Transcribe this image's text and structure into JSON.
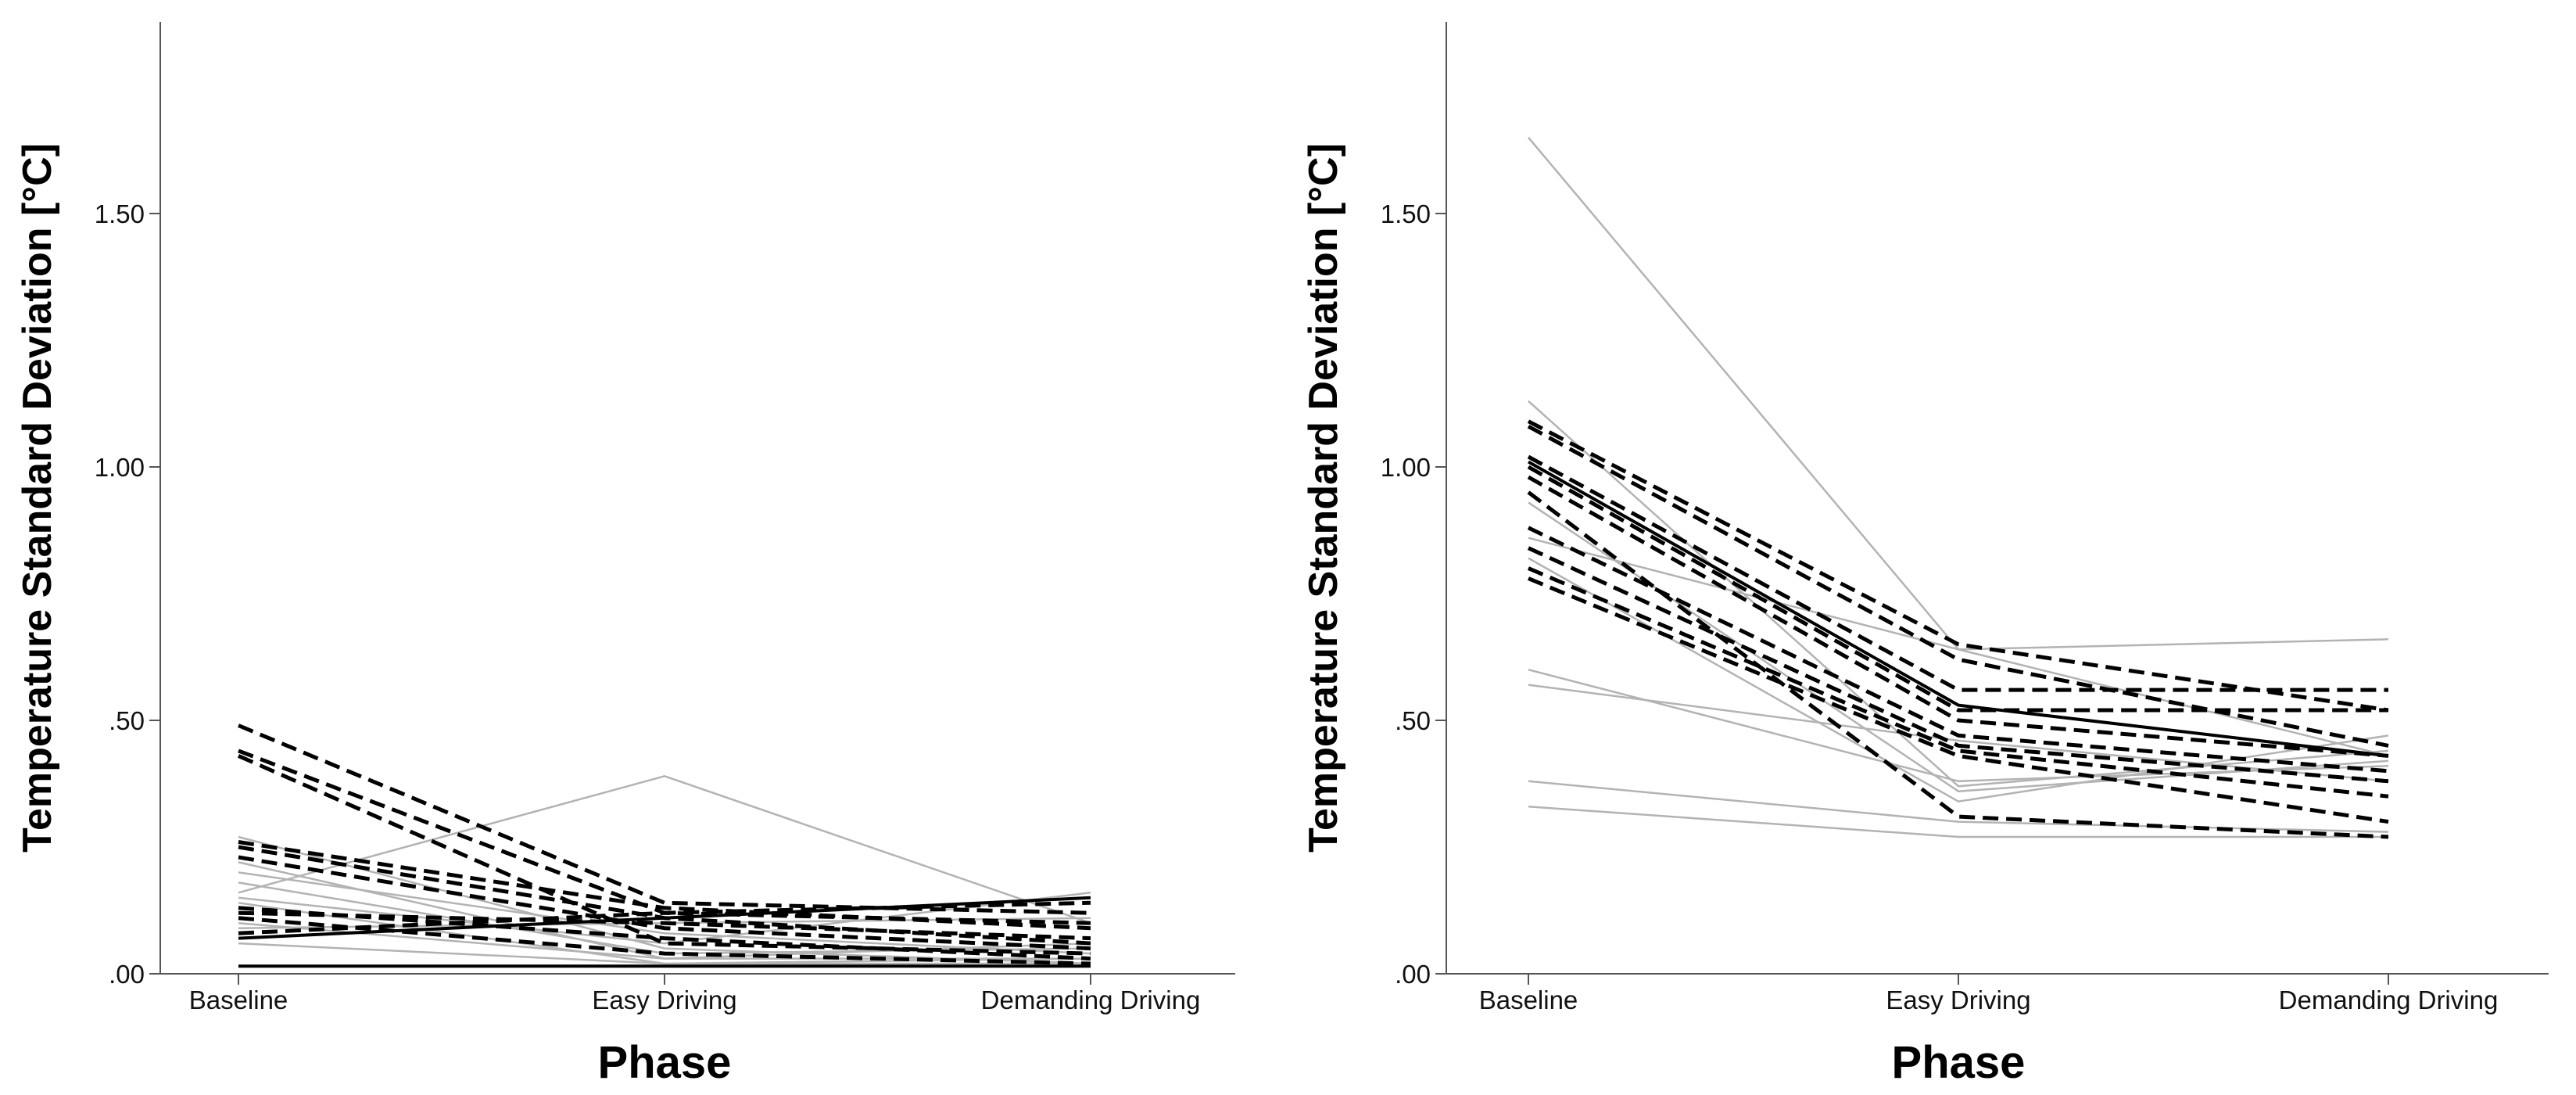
{
  "colors": {
    "dashed_series": "#000000",
    "solid_series": "#b3b3b3",
    "axis": "#555555",
    "text": "#111111"
  },
  "chart_data": [
    {
      "type": "line",
      "panel": "left",
      "categories": [
        "Baseline",
        "Easy Driving",
        "Demanding Driving"
      ],
      "xlabel": "Phase",
      "ylabel": "Temperature Standard Deviation [°C]",
      "ylim": [
        0,
        1.88
      ],
      "yticks": [
        0,
        0.5,
        1.0,
        1.5
      ],
      "ytick_labels": [
        ".00",
        ".50",
        "1.00",
        "1.50"
      ],
      "series": [
        {
          "name": "dashed-1",
          "style": "dashed",
          "values": [
            0.49,
            0.14,
            0.12
          ]
        },
        {
          "name": "dashed-2",
          "style": "dashed",
          "values": [
            0.44,
            0.12,
            0.1
          ]
        },
        {
          "name": "dashed-3",
          "style": "dashed",
          "values": [
            0.43,
            0.06,
            0.04
          ]
        },
        {
          "name": "dashed-4",
          "style": "dashed",
          "values": [
            0.26,
            0.13,
            0.09
          ]
        },
        {
          "name": "dashed-5",
          "style": "dashed",
          "values": [
            0.25,
            0.11,
            0.06
          ]
        },
        {
          "name": "dashed-6",
          "style": "dashed",
          "values": [
            0.23,
            0.09,
            0.05
          ]
        },
        {
          "name": "dashed-7",
          "style": "dashed",
          "values": [
            0.13,
            0.07,
            0.03
          ]
        },
        {
          "name": "dashed-8",
          "style": "dashed",
          "values": [
            0.12,
            0.1,
            0.07
          ]
        },
        {
          "name": "dashed-9",
          "style": "dashed",
          "values": [
            0.11,
            0.04,
            0.02
          ]
        },
        {
          "name": "dashed-10",
          "style": "dashed",
          "values": [
            0.08,
            0.12,
            0.14
          ]
        },
        {
          "name": "solid-dark-1",
          "style": "solid-dark",
          "values": [
            0.07,
            0.11,
            0.15
          ]
        },
        {
          "name": "solid-dark-2",
          "style": "solid-dark",
          "values": [
            0.015,
            0.015,
            0.015
          ]
        },
        {
          "name": "solid-1",
          "style": "solid",
          "values": [
            0.27,
            0.05,
            0.02
          ]
        },
        {
          "name": "solid-2",
          "style": "solid",
          "values": [
            0.22,
            0.03,
            0.03
          ]
        },
        {
          "name": "solid-3",
          "style": "solid",
          "values": [
            0.2,
            0.08,
            0.04
          ]
        },
        {
          "name": "solid-4",
          "style": "solid",
          "values": [
            0.18,
            0.04,
            0.05
          ]
        },
        {
          "name": "solid-5",
          "style": "solid",
          "values": [
            0.16,
            0.39,
            0.1
          ]
        },
        {
          "name": "solid-6",
          "style": "solid",
          "values": [
            0.15,
            0.06,
            0.16
          ]
        },
        {
          "name": "solid-7",
          "style": "solid",
          "values": [
            0.14,
            0.02,
            0.03
          ]
        },
        {
          "name": "solid-8",
          "style": "solid",
          "values": [
            0.1,
            0.03,
            0.06
          ]
        },
        {
          "name": "solid-9",
          "style": "solid",
          "values": [
            0.09,
            0.1,
            0.11
          ]
        },
        {
          "name": "solid-10",
          "style": "solid",
          "values": [
            0.06,
            0.02,
            0.02
          ]
        }
      ]
    },
    {
      "type": "line",
      "panel": "right",
      "categories": [
        "Baseline",
        "Easy Driving",
        "Demanding Driving"
      ],
      "xlabel": "Phase",
      "ylabel": "Temperature Standard Deviation [°C]",
      "ylim": [
        0,
        1.88
      ],
      "yticks": [
        0,
        0.5,
        1.0,
        1.5
      ],
      "ytick_labels": [
        ".00",
        ".50",
        "1.00",
        "1.50"
      ],
      "series": [
        {
          "name": "dashed-1",
          "style": "dashed",
          "values": [
            1.09,
            0.65,
            0.52
          ]
        },
        {
          "name": "dashed-2",
          "style": "dashed",
          "values": [
            1.08,
            0.62,
            0.45
          ]
        },
        {
          "name": "dashed-3",
          "style": "dashed",
          "values": [
            1.02,
            0.56,
            0.56
          ]
        },
        {
          "name": "dashed-4",
          "style": "dashed",
          "values": [
            1.0,
            0.52,
            0.52
          ]
        },
        {
          "name": "dashed-5",
          "style": "dashed",
          "values": [
            0.98,
            0.5,
            0.43
          ]
        },
        {
          "name": "dashed-6",
          "style": "dashed",
          "values": [
            0.95,
            0.31,
            0.27
          ]
        },
        {
          "name": "dashed-7",
          "style": "dashed",
          "values": [
            0.88,
            0.47,
            0.4
          ]
        },
        {
          "name": "dashed-8",
          "style": "dashed",
          "values": [
            0.84,
            0.45,
            0.38
          ]
        },
        {
          "name": "dashed-9",
          "style": "dashed",
          "values": [
            0.8,
            0.44,
            0.35
          ]
        },
        {
          "name": "dashed-10",
          "style": "dashed",
          "values": [
            0.78,
            0.43,
            0.3
          ]
        },
        {
          "name": "solid-dark-1",
          "style": "solid-dark",
          "values": [
            1.01,
            0.53,
            0.43
          ]
        },
        {
          "name": "solid-1",
          "style": "solid",
          "values": [
            1.65,
            0.64,
            0.43
          ]
        },
        {
          "name": "solid-2",
          "style": "solid",
          "values": [
            1.13,
            0.37,
            0.44
          ]
        },
        {
          "name": "solid-3",
          "style": "solid",
          "values": [
            0.93,
            0.36,
            0.42
          ]
        },
        {
          "name": "solid-4",
          "style": "solid",
          "values": [
            0.86,
            0.64,
            0.66
          ]
        },
        {
          "name": "solid-5",
          "style": "solid",
          "values": [
            0.82,
            0.34,
            0.47
          ]
        },
        {
          "name": "solid-6",
          "style": "solid",
          "values": [
            0.6,
            0.38,
            0.41
          ]
        },
        {
          "name": "solid-7",
          "style": "solid",
          "values": [
            0.57,
            0.46,
            0.38
          ]
        },
        {
          "name": "solid-8",
          "style": "solid",
          "values": [
            0.38,
            0.3,
            0.28
          ]
        },
        {
          "name": "solid-9",
          "style": "solid",
          "values": [
            0.33,
            0.27,
            0.27
          ]
        }
      ]
    }
  ]
}
